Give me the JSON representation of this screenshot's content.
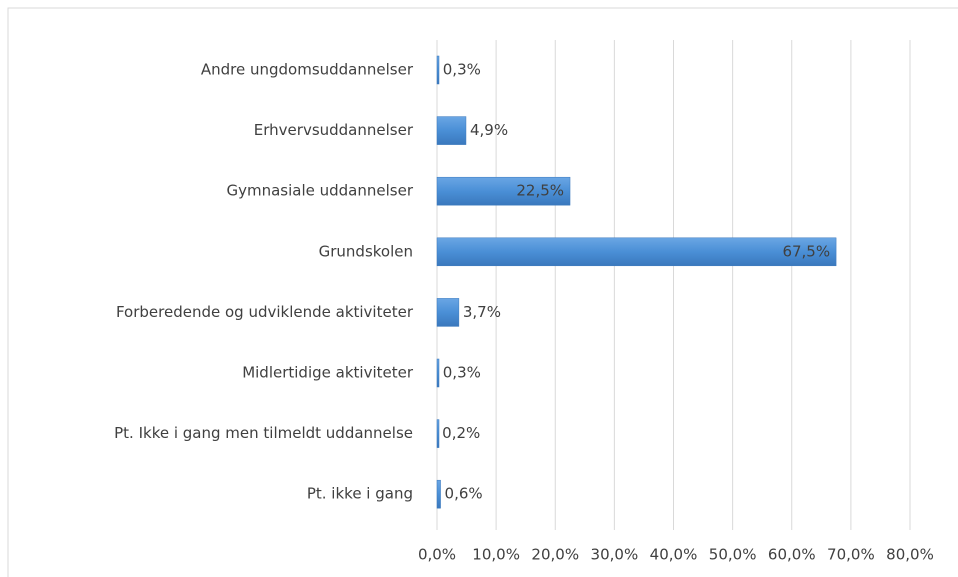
{
  "chart_data": {
    "type": "bar",
    "orientation": "horizontal",
    "categories": [
      "Andre ungdomsuddannelser",
      "Erhvervsuddannelser",
      "Gymnasiale uddannelser",
      "Grundskolen",
      "Forberedende og udviklende aktiviteter",
      "Midlertidige aktiviteter",
      "Pt. Ikke i gang men tilmeldt uddannelse",
      "Pt. ikke i gang"
    ],
    "values": [
      0.3,
      4.9,
      22.5,
      67.5,
      3.7,
      0.3,
      0.2,
      0.6
    ],
    "value_labels": [
      "0,3%",
      "4,9%",
      "22,5%",
      "67,5%",
      "3,7%",
      "0,3%",
      "0,2%",
      "0,6%"
    ],
    "color": "#4a8fd6",
    "xlim": [
      0,
      80
    ],
    "xticks": [
      {
        "value": 0,
        "label": "0,0%"
      },
      {
        "value": 10,
        "label": "10,0%"
      },
      {
        "value": 20,
        "label": "20,0%"
      },
      {
        "value": 30,
        "label": "30,0%"
      },
      {
        "value": 40,
        "label": "40,0%"
      },
      {
        "value": 50,
        "label": "50,0%"
      },
      {
        "value": 60,
        "label": "60,0%"
      },
      {
        "value": 70,
        "label": "70,0%"
      },
      {
        "value": 80,
        "label": "80,0%"
      }
    ],
    "grid": true
  }
}
